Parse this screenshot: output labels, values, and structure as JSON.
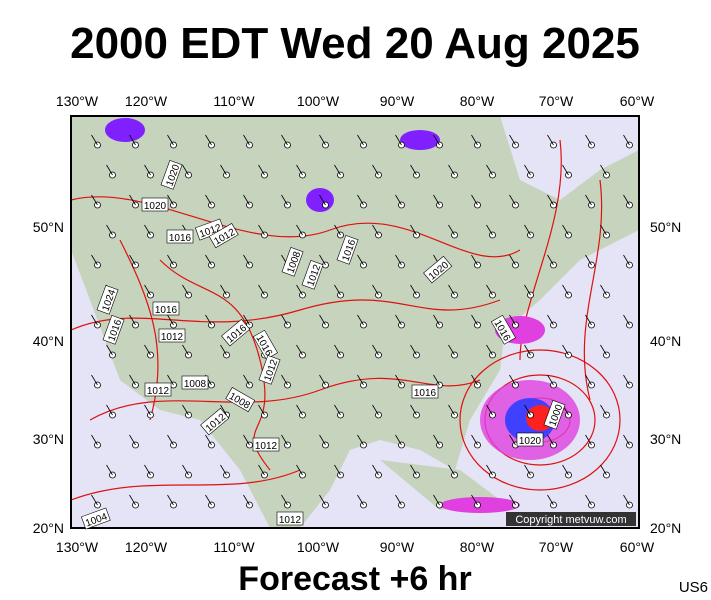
{
  "header": {
    "title": "2000 EDT Wed 20 Aug 2025"
  },
  "footer": {
    "forecast": "Forecast +6 hr",
    "code": "US6"
  },
  "copyright": "Copyright metvuw.com",
  "longitude_labels": [
    "130°W",
    "120°W",
    "110°W",
    "100°W",
    "90°W",
    "80°W",
    "70°W",
    "60°W"
  ],
  "latitude_labels": [
    "50°N",
    "40°N",
    "30°N",
    "20°N"
  ],
  "isobar_labels": [
    "1020",
    "1020",
    "1016",
    "1012",
    "1012",
    "1008",
    "1012",
    "1016",
    "1016",
    "1024",
    "1020",
    "1016",
    "1012",
    "1016",
    "1016",
    "1008",
    "1012",
    "1012",
    "1008",
    "1012",
    "1012",
    "1016",
    "1016",
    "1012",
    "1004",
    "1000",
    "1020"
  ]
}
